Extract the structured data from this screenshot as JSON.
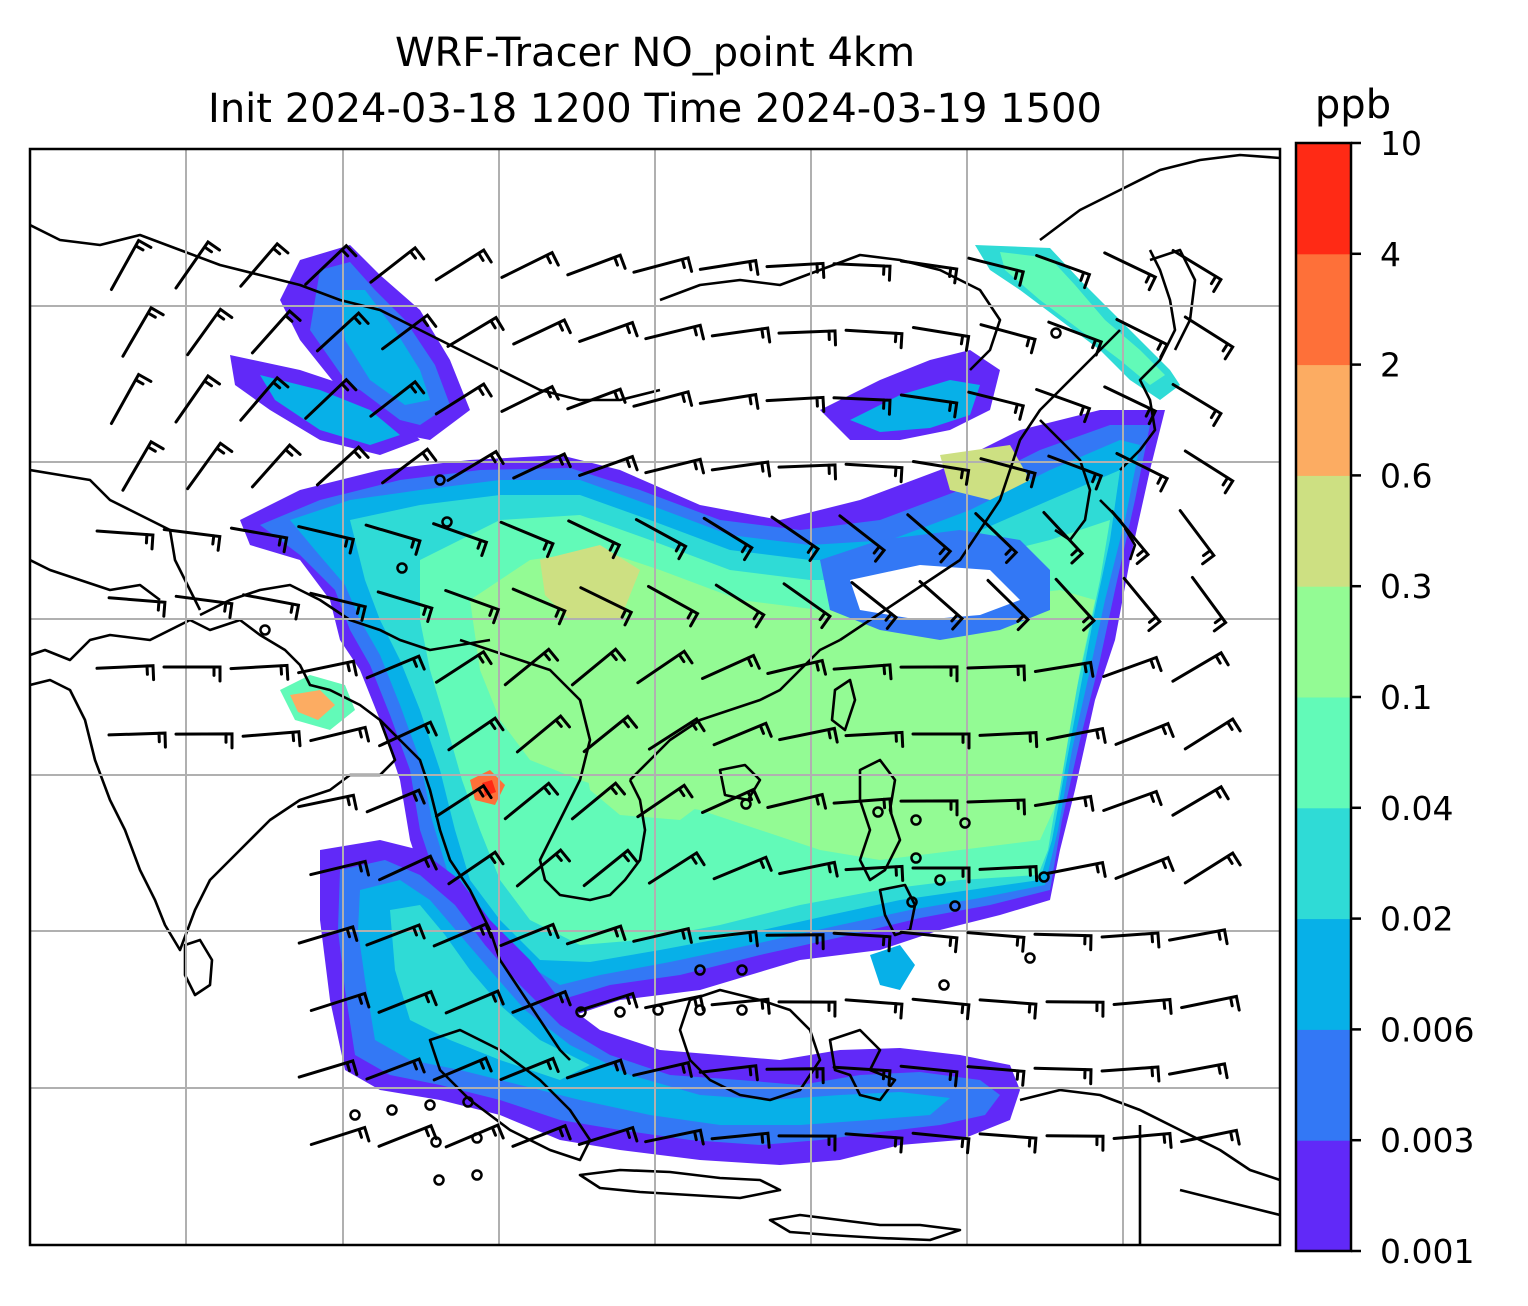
{
  "title": {
    "line1": "WRF-Tracer NO_point 4km",
    "line2": "Init 2024-03-18 1200 Time 2024-03-19 1500"
  },
  "colorbar": {
    "units": "ppb",
    "levels": [
      "0.001",
      "0.003",
      "0.006",
      "0.02",
      "0.04",
      "0.1",
      "0.3",
      "0.6",
      "2",
      "4",
      "10"
    ],
    "colors": [
      "#6129f8",
      "#3378f5",
      "#07b0e8",
      "#2fdbd6",
      "#62fab8",
      "#93fb94",
      "#cde082",
      "#fcac62",
      "#fe7039",
      "#ff2a15"
    ]
  },
  "map": {
    "coastline_color": "#000000",
    "gridline_color": "#b0b0b0",
    "wind_barb_color": "#000000"
  }
}
